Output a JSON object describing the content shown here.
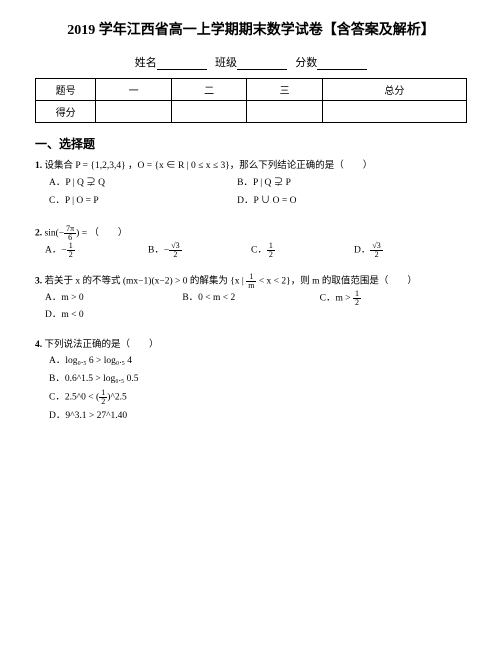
{
  "title": "2019 学年江西省高一上学期期末数学试卷【含答案及解析】",
  "info": {
    "name_label": "姓名",
    "class_label": "班级",
    "score_label": "分数"
  },
  "score_table": {
    "header": [
      "题号",
      "一",
      "二",
      "三",
      "总分"
    ],
    "row": [
      "得分",
      "",
      "",
      "",
      ""
    ]
  },
  "section": "一、选择题",
  "q1": {
    "num": "1.",
    "text": "设集合 P = {1,2,3,4} ，O = {x ∈ R | 0 ≤ x ≤ 3}，那么下列结论正确的是（　　）",
    "A": "P | Q ⊋ Q",
    "B": "P | Q ⊋ P",
    "C": "P | O = P",
    "D": "P ∪ O = O"
  },
  "q2": {
    "num": "2.",
    "text_pre": "sin(−",
    "frac_n": "7π",
    "frac_d": "6",
    "text_post": ") = （　　）",
    "A_pre": "−",
    "A_n": "1",
    "A_d": "2",
    "B_pre": "−",
    "B_n": "√3",
    "B_d": "2",
    "C_pre": "",
    "C_n": "1",
    "C_d": "2",
    "D_pre": "",
    "D_n": "√3",
    "D_d": "2"
  },
  "q3": {
    "num": "3.",
    "text_pre": "若关于 x 的不等式 (mx−1)(x−2) > 0 的解集为 {x | ",
    "fr_n": "1",
    "fr_d": "m",
    "text_post": " < x < 2}，则 m 的取值范围是（　　）",
    "A": "m > 0",
    "B": "0 < m < 2",
    "C_pre": "m > ",
    "C_n": "1",
    "C_d": "2",
    "D": "m < 0"
  },
  "q4": {
    "num": "4.",
    "text": "下列说法正确的是（　　）",
    "A": "log₀.₅ 6 > log₀.₅ 4",
    "B": "0.6^1.5 > log₀.₅ 0.5",
    "C_pre": "2.5^0 < (",
    "C_n": "1",
    "C_d": "2",
    "C_post": ")^2.5",
    "D": "9^3.1 > 27^1.40"
  }
}
